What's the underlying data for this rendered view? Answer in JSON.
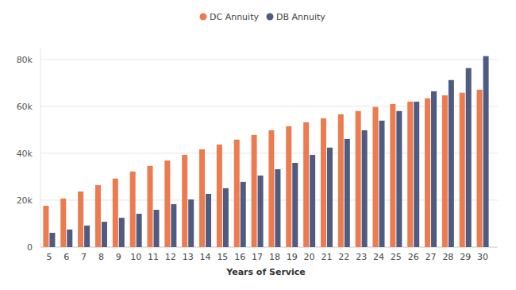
{
  "chart_data": {
    "type": "bar",
    "x_label": "Years of Service",
    "categories": [
      "5",
      "6",
      "7",
      "8",
      "9",
      "10",
      "11",
      "12",
      "13",
      "14",
      "15",
      "16",
      "17",
      "18",
      "19",
      "20",
      "21",
      "22",
      "23",
      "24",
      "25",
      "26",
      "27",
      "28",
      "29",
      "30"
    ],
    "series": [
      {
        "name": "DC Annuity",
        "color": "#ec7b4f",
        "values": [
          17600,
          20700,
          23700,
          26400,
          29200,
          32200,
          34600,
          36900,
          39300,
          41700,
          43700,
          45800,
          47800,
          49800,
          51500,
          53200,
          54900,
          56600,
          58000,
          59700,
          61000,
          62000,
          63400,
          64700,
          65800,
          67100
        ]
      },
      {
        "name": "DB Annuity",
        "color": "#4f5b80",
        "values": [
          6100,
          7500,
          9200,
          10800,
          12500,
          14200,
          15900,
          18300,
          20300,
          22700,
          25100,
          27800,
          30500,
          33200,
          35900,
          39300,
          42400,
          46100,
          49800,
          53900,
          58000,
          62000,
          66400,
          71200,
          76300,
          81400
        ]
      }
    ],
    "ylim": [
      0,
      85000
    ],
    "yticks": [
      {
        "value": 0,
        "label": "0"
      },
      {
        "value": 20000,
        "label": "20k"
      },
      {
        "value": 40000,
        "label": "40k"
      },
      {
        "value": 60000,
        "label": "60k"
      },
      {
        "value": 80000,
        "label": "80k"
      }
    ],
    "grid": true,
    "legend": "top"
  }
}
